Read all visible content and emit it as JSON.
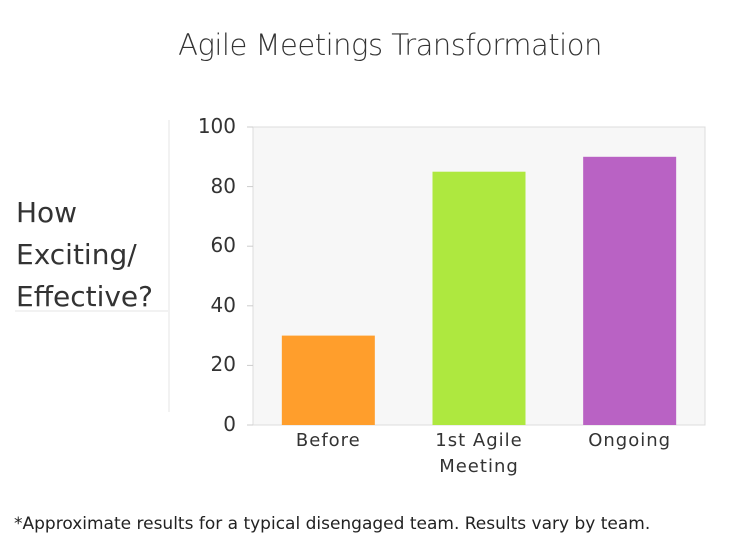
{
  "chart_data": {
    "type": "bar",
    "title": "Agile Meetings Transformation",
    "y_label": "How Exciting/ Effective?",
    "categories": [
      "Before",
      "1st Agile Meeting",
      "Ongoing"
    ],
    "values": [
      30,
      85,
      90
    ],
    "colors": [
      "#ff9e2c",
      "#aee83f",
      "#b962c4"
    ],
    "ylim": [
      0,
      100
    ],
    "yticks": [
      0,
      20,
      40,
      60,
      80,
      100
    ],
    "grid": false,
    "footnote": "*Approximate results for a typical disengaged team. Results vary by team."
  }
}
